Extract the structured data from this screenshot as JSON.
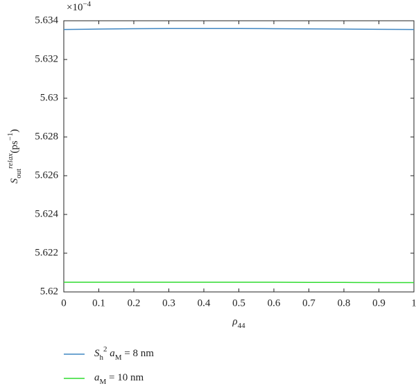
{
  "chart_data": {
    "type": "line",
    "x": [
      0,
      0.1,
      0.2,
      0.3,
      0.4,
      0.5,
      0.6,
      0.7,
      0.8,
      0.9,
      1
    ],
    "series": [
      {
        "name": [
          {
            "text": "S",
            "style": "italic"
          },
          {
            "text": "h",
            "style": "sub"
          },
          {
            "text": "2",
            "style": "sup"
          },
          {
            "text": " a",
            "style": "italic"
          },
          {
            "text": "M",
            "style": "sub"
          },
          {
            "text": " = 8 nm",
            "style": "normal"
          }
        ],
        "color": "#3f86c2",
        "values": [
          5.63355,
          5.63357,
          5.63359,
          5.6336,
          5.6336,
          5.6336,
          5.63359,
          5.63358,
          5.63357,
          5.63356,
          5.63355
        ]
      },
      {
        "name": [
          {
            "text": "a",
            "style": "italic"
          },
          {
            "text": "M",
            "style": "sub"
          },
          {
            "text": " = 10 nm",
            "style": "normal"
          }
        ],
        "color": "#2fdc2f",
        "values": [
          5.6205,
          5.6205,
          5.6205,
          5.6205,
          5.6205,
          5.6205,
          5.6205,
          5.62049,
          5.62049,
          5.62048,
          5.62048
        ]
      }
    ],
    "xlabel": [
      {
        "text": "ρ",
        "style": "italic"
      },
      {
        "text": "44",
        "style": "sub"
      }
    ],
    "ylabel": [
      {
        "text": "S",
        "style": "italic"
      },
      {
        "text": "out",
        "style": "sub"
      },
      {
        "text": "relax",
        "style": "supi"
      },
      {
        "text": "(ps",
        "style": "normal"
      },
      {
        "text": "−1",
        "style": "sup"
      },
      {
        "text": ")",
        "style": "normal"
      }
    ],
    "y_offset_text": {
      "base": "×10",
      "exponent": "−4"
    },
    "xlim": [
      0,
      1
    ],
    "ylim": [
      5.62,
      5.634
    ],
    "xticks": [
      0,
      0.1,
      0.2,
      0.3,
      0.4,
      0.5,
      0.6,
      0.7,
      0.8,
      0.9,
      1
    ],
    "yticks": [
      5.62,
      5.622,
      5.624,
      5.626,
      5.628,
      5.63,
      5.632,
      5.634
    ],
    "legend_position": "below"
  }
}
